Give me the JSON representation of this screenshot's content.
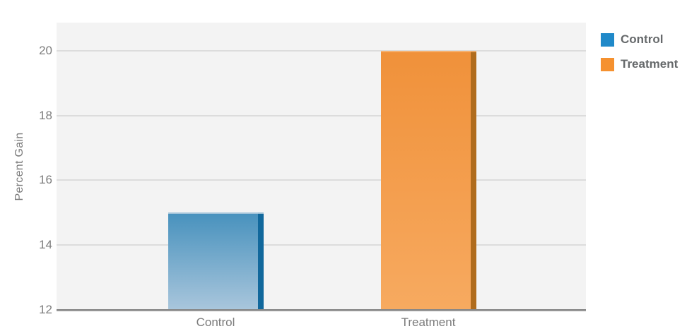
{
  "chart_data": {
    "type": "bar",
    "categories": [
      "Control",
      "Treatment"
    ],
    "values": [
      15,
      20
    ],
    "xlabel": "",
    "ylabel": "Percent Gain",
    "ylim": [
      12,
      20.87
    ],
    "yticks": [
      12,
      14,
      16,
      18,
      20
    ],
    "grid": true,
    "legend_position": "right",
    "series": [
      {
        "name": "Control",
        "value": 15,
        "legend_color": "#2089c9",
        "gradient_top": "#4791bd",
        "gradient_bottom": "#a9c6dc",
        "edge_color": "#11689c",
        "highlight_color": "#b9cfe0"
      },
      {
        "name": "Treatment",
        "value": 20,
        "legend_color": "#f5912f",
        "gradient_top": "#f0913a",
        "gradient_bottom": "#f7aa60",
        "edge_color": "#b06c1d",
        "highlight_color": "#f6b87c"
      }
    ]
  },
  "colors": {
    "plot_background": "#f3f3f3",
    "gridline": "#dcdcdc",
    "axis_line": "#8a8a8a",
    "tick_label": "#7e7e7e",
    "axis_title": "#7a7a7a",
    "legend_text": "#66696b",
    "page_background": "#ffffff"
  }
}
